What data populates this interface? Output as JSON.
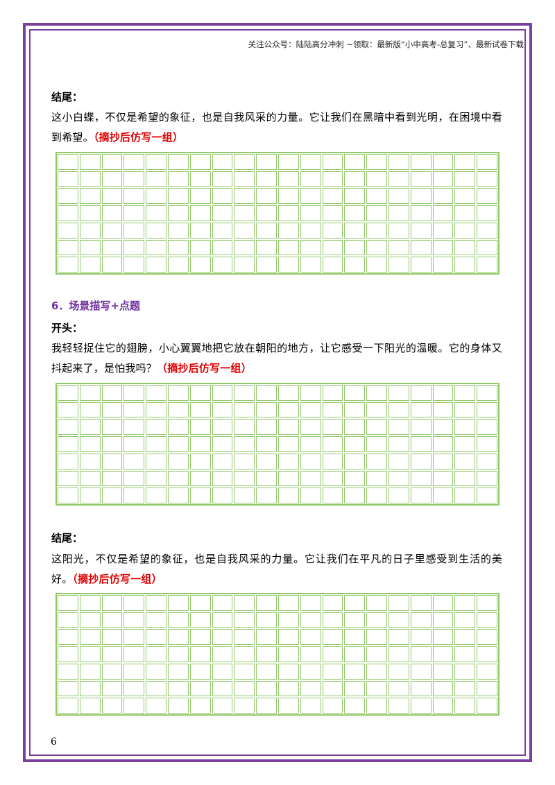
{
  "header": "关注公众号：陆陆高分冲刺  ~领取：最新版“小中高考-总复习”、最新试卷下载",
  "block1": {
    "label": "结尾：",
    "text": "这小白蝶，不仅是希望的象征，也是自我风采的力量。它让我们在黑暗中看到光明，在困境中看到希望。",
    "note": "（摘抄后仿写一组）"
  },
  "section6": {
    "title": "6．场景描写+点题"
  },
  "block2": {
    "label": "开头：",
    "text": "我轻轻捉住它的翅膀，小心翼翼地把它放在朝阳的地方，让它感受一下阳光的温暖。它的身体又抖起来了，是怕我吗？",
    "note": "（摘抄后仿写一组）"
  },
  "block3": {
    "label": "结尾：",
    "text": "这阳光，不仅是希望的象征，也是自我风采的力量。它让我们在平凡的日子里感受到生活的美好。",
    "note": "（摘抄后仿写一组）"
  },
  "page_number": "6",
  "colors": {
    "border": "#7b3fa0",
    "grid": "#92c86a",
    "accent_red": "#e00000",
    "section_purple": "#7030a0"
  }
}
